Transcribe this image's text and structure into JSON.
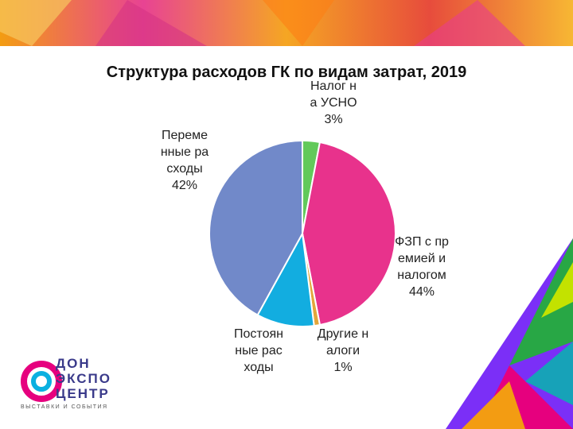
{
  "chart_data": {
    "type": "pie",
    "title": "Структура расходов ГК по видам затрат, 2019",
    "categories": [
      "Налог на УСНО",
      "ФЗП с премией и налогом",
      "Другие налоги",
      "Постоянные расходы",
      "Переменные расходы"
    ],
    "values": [
      3,
      44,
      1,
      10,
      42
    ],
    "value_labels": [
      "3%",
      "44%",
      "1%",
      null,
      "42%"
    ],
    "colors": [
      "#62c95a",
      "#e8328c",
      "#e3a63a",
      "#12ade0",
      "#7189c9"
    ]
  },
  "logo": {
    "lines": [
      "ДОН",
      "ЭКСПО",
      "ЦЕНТР"
    ],
    "tagline": "ВЫСТАВКИ И СОБЫТИЯ"
  }
}
